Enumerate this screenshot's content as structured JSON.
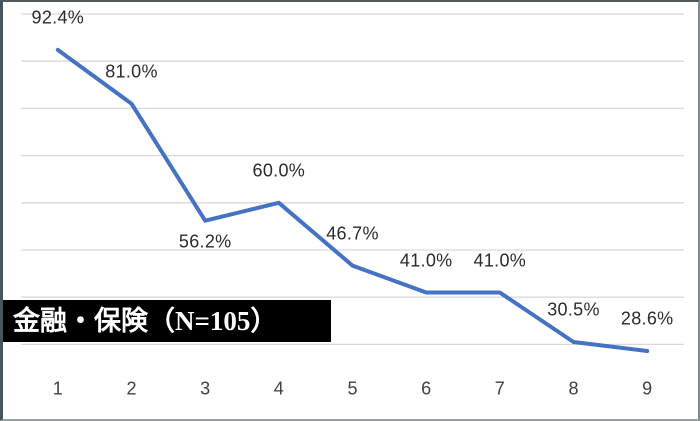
{
  "chart_data": {
    "type": "line",
    "title": "金融・保険（N=105）",
    "series_label": {
      "jp": "金融・保険",
      "n": "（N=105）"
    },
    "categories": [
      "1",
      "2",
      "3",
      "4",
      "5",
      "6",
      "7",
      "8",
      "9"
    ],
    "series": [
      {
        "name": "金融・保険",
        "values": [
          92.4,
          81.0,
          56.2,
          60.0,
          46.7,
          41.0,
          41.0,
          30.5,
          28.6
        ]
      }
    ],
    "data_labels": [
      "92.4%",
      "81.0%",
      "56.2%",
      "60.0%",
      "46.7%",
      "41.0%",
      "41.0%",
      "30.5%",
      "28.6%"
    ],
    "data_label_placement": [
      "above",
      "above",
      "below",
      "above",
      "above",
      "above",
      "above",
      "above",
      "above"
    ],
    "xlabel": "",
    "ylabel": "",
    "ylim": [
      20,
      100
    ],
    "gridline_values": [
      100,
      90,
      80,
      70,
      60,
      50,
      40,
      30
    ],
    "grid": true,
    "legend": false,
    "colors": {
      "line": "#4472C4",
      "gridline": "#D9D9D9",
      "background": "#FFFFFF",
      "data_label": "#2B2B2B",
      "axis_label": "#404040",
      "box_bg": "#000000",
      "box_fg": "#FFFFFF"
    }
  }
}
